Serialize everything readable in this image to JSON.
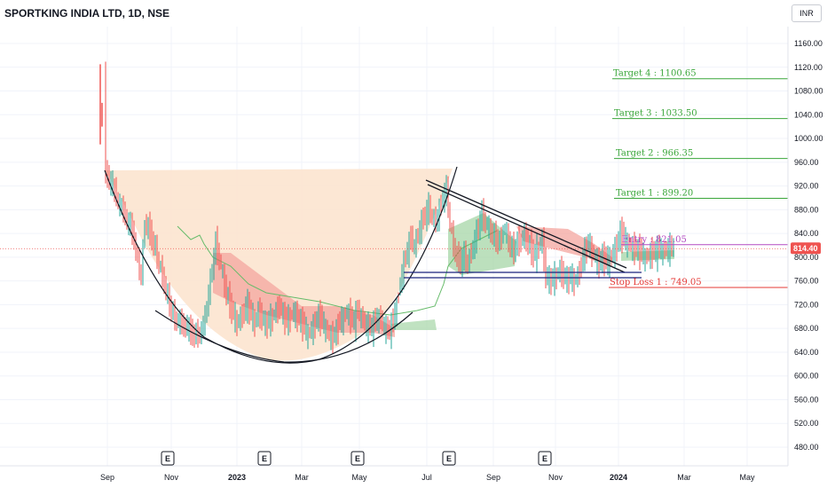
{
  "header": {
    "title": "SPORTKING INDIA LTD, 1D, NSE",
    "currency": "INR"
  },
  "colors": {
    "up": "#26a69a",
    "down": "#ef5350",
    "target": "#3aa63a",
    "entry": "#b44bc2",
    "stop": "#e53935",
    "cup_fill": "#fce4cf",
    "cloud_green": "#a5d6a7",
    "cloud_red": "#f4a59f"
  },
  "chart_data": {
    "type": "candlestick",
    "symbol": "SPORTKING INDIA LTD",
    "interval": "1D",
    "exchange": "NSE",
    "current_price": "814.40",
    "y_ticks": [
      "1160.00",
      "1120.00",
      "1080.00",
      "1040.00",
      "1000.00",
      "960.00",
      "920.00",
      "880.00",
      "840.00",
      "800.00",
      "760.00",
      "720.00",
      "680.00",
      "640.00",
      "600.00",
      "560.00",
      "520.00",
      "480.00"
    ],
    "ylim": [
      460,
      1180
    ],
    "x_ticks": [
      {
        "label": "Sep",
        "bold": false
      },
      {
        "label": "Nov",
        "bold": false
      },
      {
        "label": "2023",
        "bold": true
      },
      {
        "label": "Mar",
        "bold": false
      },
      {
        "label": "May",
        "bold": false
      },
      {
        "label": "Jul",
        "bold": false
      },
      {
        "label": "Sep",
        "bold": false
      },
      {
        "label": "Nov",
        "bold": false
      },
      {
        "label": "2024",
        "bold": true
      },
      {
        "label": "Mar",
        "bold": false
      },
      {
        "label": "May",
        "bold": false
      }
    ],
    "earnings_markers": [
      "E",
      "E",
      "E",
      "E",
      "E"
    ],
    "levels": [
      {
        "label": "Target 4 : 1100.65",
        "value": 1100.65,
        "kind": "target"
      },
      {
        "label": "Target 3 : 1033.50",
        "value": 1033.5,
        "kind": "target"
      },
      {
        "label": "Target 2 : 966.35",
        "value": 966.35,
        "kind": "target"
      },
      {
        "label": "Target 1 : 899.20",
        "value": 899.2,
        "kind": "target"
      },
      {
        "label": "Entry : 821.05",
        "value": 821.05,
        "kind": "entry"
      },
      {
        "label": "Stop Loss 1 : 749.05",
        "value": 749.05,
        "kind": "stop"
      }
    ],
    "price_path": [
      [
        118,
        1120
      ],
      [
        120,
        940
      ],
      [
        124,
        930
      ],
      [
        130,
        910
      ],
      [
        136,
        890
      ],
      [
        142,
        870
      ],
      [
        148,
        850
      ],
      [
        152,
        830
      ],
      [
        156,
        790
      ],
      [
        160,
        770
      ],
      [
        164,
        860
      ],
      [
        168,
        850
      ],
      [
        172,
        830
      ],
      [
        176,
        810
      ],
      [
        180,
        790
      ],
      [
        184,
        770
      ],
      [
        188,
        745
      ],
      [
        192,
        720
      ],
      [
        196,
        700
      ],
      [
        200,
        695
      ],
      [
        206,
        690
      ],
      [
        212,
        680
      ],
      [
        218,
        670
      ],
      [
        222,
        665
      ],
      [
        228,
        680
      ],
      [
        232,
        700
      ],
      [
        236,
        740
      ],
      [
        240,
        780
      ],
      [
        244,
        820
      ],
      [
        248,
        800
      ],
      [
        252,
        770
      ],
      [
        256,
        740
      ],
      [
        260,
        720
      ],
      [
        264,
        700
      ],
      [
        268,
        690
      ],
      [
        272,
        700
      ],
      [
        276,
        710
      ],
      [
        280,
        720
      ],
      [
        284,
        700
      ],
      [
        288,
        690
      ],
      [
        292,
        710
      ],
      [
        296,
        700
      ],
      [
        300,
        685
      ],
      [
        304,
        690
      ],
      [
        308,
        700
      ],
      [
        312,
        710
      ],
      [
        316,
        720
      ],
      [
        320,
        700
      ],
      [
        324,
        690
      ],
      [
        328,
        700
      ],
      [
        332,
        710
      ],
      [
        336,
        700
      ],
      [
        340,
        690
      ],
      [
        344,
        680
      ],
      [
        348,
        670
      ],
      [
        352,
        680
      ],
      [
        356,
        690
      ],
      [
        360,
        700
      ],
      [
        364,
        690
      ],
      [
        368,
        680
      ],
      [
        372,
        670
      ],
      [
        376,
        665
      ],
      [
        380,
        675
      ],
      [
        384,
        690
      ],
      [
        388,
        700
      ],
      [
        392,
        710
      ],
      [
        396,
        700
      ],
      [
        400,
        690
      ],
      [
        404,
        710
      ],
      [
        408,
        700
      ],
      [
        412,
        690
      ],
      [
        416,
        685
      ],
      [
        420,
        680
      ],
      [
        424,
        690
      ],
      [
        428,
        700
      ],
      [
        432,
        690
      ],
      [
        436,
        680
      ],
      [
        440,
        675
      ],
      [
        444,
        690
      ],
      [
        448,
        720
      ],
      [
        452,
        760
      ],
      [
        456,
        790
      ],
      [
        460,
        810
      ],
      [
        464,
        830
      ],
      [
        468,
        820
      ],
      [
        472,
        840
      ],
      [
        476,
        860
      ],
      [
        480,
        870
      ],
      [
        484,
        880
      ],
      [
        488,
        870
      ],
      [
        492,
        860
      ],
      [
        496,
        880
      ],
      [
        500,
        900
      ],
      [
        504,
        910
      ],
      [
        508,
        860
      ],
      [
        512,
        820
      ],
      [
        516,
        800
      ],
      [
        520,
        790
      ],
      [
        524,
        800
      ],
      [
        528,
        790
      ],
      [
        532,
        810
      ],
      [
        536,
        830
      ],
      [
        540,
        850
      ],
      [
        544,
        870
      ],
      [
        548,
        860
      ],
      [
        552,
        850
      ],
      [
        556,
        840
      ],
      [
        560,
        830
      ],
      [
        564,
        820
      ],
      [
        568,
        850
      ],
      [
        572,
        840
      ],
      [
        576,
        820
      ],
      [
        580,
        810
      ],
      [
        584,
        820
      ],
      [
        588,
        830
      ],
      [
        592,
        840
      ],
      [
        596,
        825
      ],
      [
        600,
        810
      ],
      [
        604,
        800
      ],
      [
        608,
        820
      ],
      [
        612,
        830
      ],
      [
        616,
        770
      ],
      [
        620,
        760
      ],
      [
        624,
        760
      ],
      [
        628,
        770
      ],
      [
        632,
        780
      ],
      [
        636,
        770
      ],
      [
        640,
        760
      ],
      [
        644,
        765
      ],
      [
        648,
        760
      ],
      [
        652,
        770
      ],
      [
        656,
        790
      ],
      [
        660,
        810
      ],
      [
        664,
        820
      ],
      [
        668,
        810
      ],
      [
        672,
        800
      ],
      [
        676,
        790
      ],
      [
        680,
        800
      ],
      [
        684,
        790
      ],
      [
        688,
        800
      ],
      [
        692,
        810
      ],
      [
        696,
        820
      ],
      [
        700,
        840
      ],
      [
        704,
        830
      ],
      [
        708,
        825
      ],
      [
        712,
        820
      ],
      [
        716,
        815
      ],
      [
        720,
        810
      ],
      [
        724,
        805
      ],
      [
        728,
        800
      ],
      [
        732,
        805
      ],
      [
        736,
        810
      ],
      [
        740,
        808
      ],
      [
        744,
        812
      ],
      [
        748,
        810
      ],
      [
        752,
        815
      ],
      [
        756,
        818
      ],
      [
        760,
        814
      ]
    ]
  }
}
